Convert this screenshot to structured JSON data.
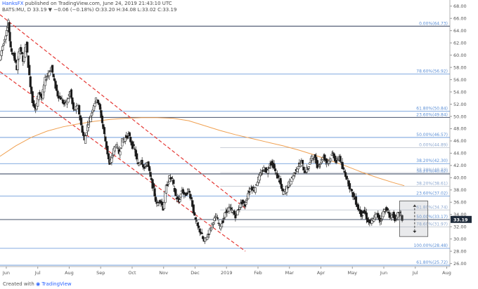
{
  "header": {
    "author": "HanksFX",
    "published_text": "published on TradingView.com, June 24, 2019 21:43:10 UTC",
    "symbol_line": "BATS:MU, D  33.19  ▼ −0.06 (−0.18%)  O:33.20  H:34.08  L:33.02  C:33.19"
  },
  "footer": {
    "created_with": "Created with",
    "brand": "TradingView"
  },
  "colors": {
    "up": "#ffffff",
    "down": "#1a1a1a",
    "channel": "#e53935",
    "fib_line": "#5b8fd6",
    "ma": "#f0a050",
    "hline": "#45506a",
    "price_tag": "#1e2a3a"
  },
  "chart_data": {
    "type": "candlestick",
    "symbol": "BATS:MU",
    "timeframe": "D",
    "last_price": "33.19",
    "y_range": [
      25.5,
      69.0
    ],
    "y_ticks": [
      "68.00",
      "66.00",
      "64.00",
      "62.00",
      "60.00",
      "58.00",
      "56.00",
      "54.00",
      "52.00",
      "50.00",
      "48.00",
      "46.00",
      "44.00",
      "42.00",
      "40.00",
      "38.00",
      "36.00",
      "34.00",
      "32.00",
      "30.00",
      "28.00",
      "26.00"
    ],
    "x_axis_range_months": [
      0,
      14.3
    ],
    "x_ticks": [
      {
        "label": "Jun",
        "pos": 0.2
      },
      {
        "label": "Jul",
        "pos": 1.2
      },
      {
        "label": "Aug",
        "pos": 2.2
      },
      {
        "label": "Sep",
        "pos": 3.2
      },
      {
        "label": "Oct",
        "pos": 4.2
      },
      {
        "label": "Nov",
        "pos": 5.2
      },
      {
        "label": "Dec",
        "pos": 6.2
      },
      {
        "label": "2019",
        "pos": 7.2
      },
      {
        "label": "Feb",
        "pos": 8.2
      },
      {
        "label": "Mar",
        "pos": 9.2
      },
      {
        "label": "Apr",
        "pos": 10.2
      },
      {
        "label": "May",
        "pos": 11.2
      },
      {
        "label": "Jun",
        "pos": 12.2
      },
      {
        "label": "Jul",
        "pos": 13.2
      },
      {
        "label": "Aug",
        "pos": 14.2
      }
    ],
    "fib_levels_major": [
      {
        "label": "0.00%(64.73)",
        "price": 64.73
      },
      {
        "label": "78.60%(56.92)",
        "price": 56.92
      },
      {
        "label": "61.80%(50.84)",
        "price": 50.84
      },
      {
        "label": "23.60%(49.84)",
        "price": 49.84
      },
      {
        "label": "50.00%(46.57)",
        "price": 46.57
      },
      {
        "label": "38.20%(42.30)",
        "price": 42.3
      },
      {
        "label": "38.20%(40.62)",
        "price": 40.62
      },
      {
        "label": "23.60%(37.02)",
        "price": 37.02
      },
      {
        "label": "50.00%(33.17)",
        "price": 33.17
      },
      {
        "label": "100.00%(28.48)",
        "price": 28.48
      },
      {
        "label": "61.80%(25.72)",
        "price": 25.72
      }
    ],
    "fib_levels_minor": [
      {
        "label": "0.00%(44.89)",
        "price": 44.89
      },
      {
        "label": "38.20%(40.83)",
        "price": 40.83
      },
      {
        "label": "38.20%(38.61)",
        "price": 38.61
      },
      {
        "label": "61.80%(34.74)",
        "price": 34.74
      },
      {
        "label": "78.60%(31.97)",
        "price": 31.97
      }
    ],
    "horizontal_lines": [
      64.73,
      49.84,
      40.62,
      33.17
    ],
    "channel": {
      "start_month": 0.0,
      "end_month": 7.8,
      "upper_start": 66.6,
      "upper_end": 35.0,
      "lower_start": 57.3,
      "lower_end": 28.0
    },
    "moving_average": [
      {
        "m": 0.0,
        "v": 43.5
      },
      {
        "m": 0.5,
        "v": 45.2
      },
      {
        "m": 1.0,
        "v": 46.6
      },
      {
        "m": 1.5,
        "v": 47.6
      },
      {
        "m": 2.0,
        "v": 48.3
      },
      {
        "m": 2.5,
        "v": 48.8
      },
      {
        "m": 3.0,
        "v": 49.2
      },
      {
        "m": 3.5,
        "v": 49.5
      },
      {
        "m": 4.0,
        "v": 49.7
      },
      {
        "m": 4.5,
        "v": 49.8
      },
      {
        "m": 5.0,
        "v": 49.8
      },
      {
        "m": 5.5,
        "v": 49.7
      },
      {
        "m": 6.0,
        "v": 49.3
      },
      {
        "m": 6.5,
        "v": 48.5
      },
      {
        "m": 7.0,
        "v": 47.7
      },
      {
        "m": 7.5,
        "v": 47.0
      },
      {
        "m": 8.0,
        "v": 46.4
      },
      {
        "m": 8.5,
        "v": 45.8
      },
      {
        "m": 9.0,
        "v": 45.2
      },
      {
        "m": 9.5,
        "v": 44.5
      },
      {
        "m": 10.0,
        "v": 43.7
      },
      {
        "m": 10.5,
        "v": 42.8
      },
      {
        "m": 11.0,
        "v": 41.9
      },
      {
        "m": 11.5,
        "v": 40.9
      },
      {
        "m": 12.0,
        "v": 40.0
      },
      {
        "m": 12.5,
        "v": 39.2
      },
      {
        "m": 12.85,
        "v": 38.7
      }
    ],
    "projection_box": {
      "start_month": 12.7,
      "end_month": 13.6,
      "top": 36.2,
      "bottom": 30.4
    },
    "projection_arrow": {
      "month": 13.18,
      "top": 35.6,
      "bottom": 31.0
    },
    "close_path": [
      {
        "m": 0.0,
        "v": 59.2
      },
      {
        "m": 0.1,
        "v": 61.5
      },
      {
        "m": 0.2,
        "v": 63.5
      },
      {
        "m": 0.28,
        "v": 65.3
      },
      {
        "m": 0.35,
        "v": 61.0
      },
      {
        "m": 0.45,
        "v": 60.0
      },
      {
        "m": 0.55,
        "v": 57.8
      },
      {
        "m": 0.65,
        "v": 61.5
      },
      {
        "m": 0.75,
        "v": 59.0
      },
      {
        "m": 0.85,
        "v": 62.0
      },
      {
        "m": 0.95,
        "v": 56.5
      },
      {
        "m": 1.05,
        "v": 52.5
      },
      {
        "m": 1.15,
        "v": 51.0
      },
      {
        "m": 1.25,
        "v": 54.0
      },
      {
        "m": 1.35,
        "v": 53.0
      },
      {
        "m": 1.45,
        "v": 56.0
      },
      {
        "m": 1.55,
        "v": 57.0
      },
      {
        "m": 1.65,
        "v": 58.0
      },
      {
        "m": 1.75,
        "v": 55.5
      },
      {
        "m": 1.85,
        "v": 53.5
      },
      {
        "m": 1.95,
        "v": 53.0
      },
      {
        "m": 2.05,
        "v": 52.0
      },
      {
        "m": 2.15,
        "v": 52.5
      },
      {
        "m": 2.25,
        "v": 54.0
      },
      {
        "m": 2.35,
        "v": 51.0
      },
      {
        "m": 2.5,
        "v": 51.5
      },
      {
        "m": 2.6,
        "v": 48.5
      },
      {
        "m": 2.7,
        "v": 46.0
      },
      {
        "m": 2.8,
        "v": 48.5
      },
      {
        "m": 2.9,
        "v": 50.0
      },
      {
        "m": 3.0,
        "v": 52.0
      },
      {
        "m": 3.1,
        "v": 53.0
      },
      {
        "m": 3.2,
        "v": 51.0
      },
      {
        "m": 3.3,
        "v": 48.0
      },
      {
        "m": 3.4,
        "v": 45.0
      },
      {
        "m": 3.5,
        "v": 42.0
      },
      {
        "m": 3.6,
        "v": 44.0
      },
      {
        "m": 3.7,
        "v": 45.5
      },
      {
        "m": 3.8,
        "v": 44.0
      },
      {
        "m": 3.9,
        "v": 46.0
      },
      {
        "m": 4.0,
        "v": 46.5
      },
      {
        "m": 4.1,
        "v": 47.0
      },
      {
        "m": 4.2,
        "v": 45.5
      },
      {
        "m": 4.3,
        "v": 44.5
      },
      {
        "m": 4.4,
        "v": 42.0
      },
      {
        "m": 4.5,
        "v": 43.0
      },
      {
        "m": 4.6,
        "v": 41.5
      },
      {
        "m": 4.7,
        "v": 42.5
      },
      {
        "m": 4.8,
        "v": 40.0
      },
      {
        "m": 4.9,
        "v": 38.0
      },
      {
        "m": 5.0,
        "v": 35.5
      },
      {
        "m": 5.1,
        "v": 36.5
      },
      {
        "m": 5.2,
        "v": 35.0
      },
      {
        "m": 5.3,
        "v": 38.5
      },
      {
        "m": 5.4,
        "v": 40.0
      },
      {
        "m": 5.5,
        "v": 39.5
      },
      {
        "m": 5.6,
        "v": 37.0
      },
      {
        "m": 5.7,
        "v": 36.0
      },
      {
        "m": 5.8,
        "v": 38.0
      },
      {
        "m": 5.9,
        "v": 37.0
      },
      {
        "m": 6.0,
        "v": 38.0
      },
      {
        "m": 6.1,
        "v": 36.5
      },
      {
        "m": 6.2,
        "v": 33.5
      },
      {
        "m": 6.3,
        "v": 32.0
      },
      {
        "m": 6.4,
        "v": 31.0
      },
      {
        "m": 6.5,
        "v": 29.5
      },
      {
        "m": 6.6,
        "v": 30.5
      },
      {
        "m": 6.7,
        "v": 31.5
      },
      {
        "m": 6.8,
        "v": 33.0
      },
      {
        "m": 6.9,
        "v": 33.5
      },
      {
        "m": 7.0,
        "v": 32.0
      },
      {
        "m": 7.1,
        "v": 33.0
      },
      {
        "m": 7.2,
        "v": 34.5
      },
      {
        "m": 7.3,
        "v": 35.0
      },
      {
        "m": 7.4,
        "v": 34.5
      },
      {
        "m": 7.5,
        "v": 33.8
      },
      {
        "m": 7.6,
        "v": 35.0
      },
      {
        "m": 7.7,
        "v": 36.0
      },
      {
        "m": 7.8,
        "v": 35.5
      },
      {
        "m": 7.9,
        "v": 37.5
      },
      {
        "m": 8.0,
        "v": 38.5
      },
      {
        "m": 8.1,
        "v": 38.0
      },
      {
        "m": 8.2,
        "v": 39.5
      },
      {
        "m": 8.3,
        "v": 40.5
      },
      {
        "m": 8.4,
        "v": 41.5
      },
      {
        "m": 8.5,
        "v": 41.0
      },
      {
        "m": 8.6,
        "v": 42.5
      },
      {
        "m": 8.7,
        "v": 42.0
      },
      {
        "m": 8.8,
        "v": 40.5
      },
      {
        "m": 8.9,
        "v": 39.5
      },
      {
        "m": 9.0,
        "v": 37.5
      },
      {
        "m": 9.1,
        "v": 38.0
      },
      {
        "m": 9.2,
        "v": 39.0
      },
      {
        "m": 9.3,
        "v": 40.0
      },
      {
        "m": 9.4,
        "v": 41.0
      },
      {
        "m": 9.5,
        "v": 42.0
      },
      {
        "m": 9.6,
        "v": 42.5
      },
      {
        "m": 9.7,
        "v": 41.0
      },
      {
        "m": 9.8,
        "v": 41.5
      },
      {
        "m": 9.9,
        "v": 43.0
      },
      {
        "m": 10.0,
        "v": 43.5
      },
      {
        "m": 10.1,
        "v": 42.0
      },
      {
        "m": 10.2,
        "v": 42.5
      },
      {
        "m": 10.3,
        "v": 43.5
      },
      {
        "m": 10.4,
        "v": 42.5
      },
      {
        "m": 10.5,
        "v": 43.0
      },
      {
        "m": 10.6,
        "v": 44.0
      },
      {
        "m": 10.7,
        "v": 42.5
      },
      {
        "m": 10.8,
        "v": 43.5
      },
      {
        "m": 10.9,
        "v": 41.5
      },
      {
        "m": 11.0,
        "v": 40.5
      },
      {
        "m": 11.1,
        "v": 39.0
      },
      {
        "m": 11.2,
        "v": 37.5
      },
      {
        "m": 11.3,
        "v": 36.5
      },
      {
        "m": 11.4,
        "v": 35.0
      },
      {
        "m": 11.5,
        "v": 34.0
      },
      {
        "m": 11.6,
        "v": 34.5
      },
      {
        "m": 11.7,
        "v": 33.0
      },
      {
        "m": 11.8,
        "v": 32.5
      },
      {
        "m": 11.9,
        "v": 33.5
      },
      {
        "m": 12.0,
        "v": 34.0
      },
      {
        "m": 12.1,
        "v": 33.0
      },
      {
        "m": 12.2,
        "v": 34.5
      },
      {
        "m": 12.3,
        "v": 35.0
      },
      {
        "m": 12.4,
        "v": 33.5
      },
      {
        "m": 12.5,
        "v": 34.0
      },
      {
        "m": 12.6,
        "v": 33.0
      },
      {
        "m": 12.7,
        "v": 34.5
      },
      {
        "m": 12.8,
        "v": 33.19
      }
    ]
  }
}
